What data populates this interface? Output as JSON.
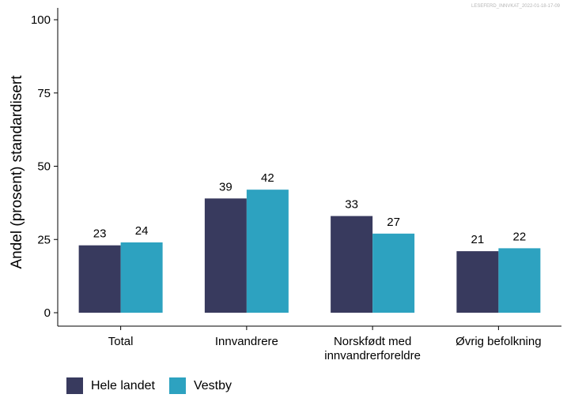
{
  "stamp": "LESEFERD_INNVKAT_2022-01-18-17-09",
  "colors": {
    "series": [
      "#383A5E",
      "#2DA2C0"
    ]
  },
  "chart_data": {
    "type": "bar",
    "ylabel": "Andel (prosent) standardisert",
    "xlabel": "",
    "ylim": [
      0,
      100
    ],
    "yticks": [
      "0",
      "25",
      "50",
      "75",
      "100"
    ],
    "categories": [
      [
        "Total"
      ],
      [
        "Innvandrere"
      ],
      [
        "Norskfødt med",
        "innvandrerforeldre"
      ],
      [
        "Øvrig befolkning"
      ]
    ],
    "series": [
      {
        "name": "Hele landet",
        "values": [
          23,
          39,
          33,
          21
        ],
        "labels": [
          "23",
          "39",
          "33",
          "21"
        ]
      },
      {
        "name": "Vestby",
        "values": [
          24,
          42,
          27,
          22
        ],
        "labels": [
          "24",
          "42",
          "27",
          "22"
        ]
      }
    ],
    "legend_position": "bottom-left",
    "grid": false
  }
}
